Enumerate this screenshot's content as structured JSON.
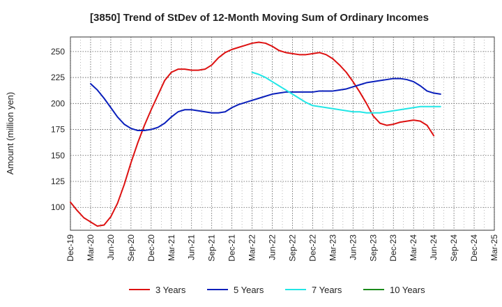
{
  "chart_data": {
    "type": "line",
    "title": "[3850]  Trend of StDev of 12-Month Moving Sum of Ordinary Incomes",
    "xlabel": "",
    "ylabel": "Amount (million yen)",
    "x_tick_labels": [
      "Dec-19",
      "Mar-20",
      "Jun-20",
      "Sep-20",
      "Dec-20",
      "Mar-21",
      "Jun-21",
      "Sep-21",
      "Dec-21",
      "Mar-22",
      "Jun-22",
      "Sep-22",
      "Dec-22",
      "Mar-23",
      "Jun-23",
      "Sep-23",
      "Dec-23",
      "Mar-24",
      "Jun-24",
      "Sep-24",
      "Dec-24",
      "Mar-25"
    ],
    "y_ticks": [
      100,
      125,
      150,
      175,
      200,
      225,
      250
    ],
    "ylim": [
      78,
      264
    ],
    "grid": true,
    "legend_position": "bottom",
    "series": [
      {
        "name": "3 Years",
        "color": "#dd1111",
        "start": "Dec-19",
        "values": [
          105,
          97,
          90,
          86,
          82,
          83,
          91,
          104,
          122,
          143,
          162,
          179,
          194,
          208,
          222,
          230,
          233,
          233,
          232,
          232,
          233,
          237,
          244,
          249,
          252,
          254,
          256,
          258,
          259,
          258,
          255,
          251,
          249,
          248,
          247,
          247,
          248,
          249,
          247,
          243,
          237,
          230,
          221,
          211,
          200,
          188,
          181,
          179,
          180,
          182,
          183,
          184,
          183,
          179,
          169
        ]
      },
      {
        "name": "5 Years",
        "color": "#0a1fbb",
        "start": "Mar-20",
        "values": [
          219,
          213,
          205,
          196,
          187,
          180,
          176,
          174,
          174,
          175,
          177,
          181,
          187,
          192,
          194,
          194,
          193,
          192,
          191,
          191,
          192,
          196,
          199,
          201,
          203,
          205,
          207,
          209,
          210,
          211,
          211,
          211,
          211,
          211,
          212,
          212,
          212,
          213,
          214,
          216,
          218,
          220,
          221,
          222,
          223,
          224,
          224,
          223,
          221,
          217,
          212,
          210,
          209
        ]
      },
      {
        "name": "7 Years",
        "color": "#22e6e6",
        "start": "Mar-22",
        "values": [
          230,
          228,
          225,
          221,
          217,
          213,
          209,
          205,
          201,
          198,
          197,
          196,
          195,
          194,
          193,
          192,
          192,
          191,
          191,
          191,
          192,
          193,
          194,
          195,
          196,
          197,
          197,
          197,
          197
        ]
      },
      {
        "name": "10 Years",
        "color": "#1a8a1a",
        "start": "Dec-24",
        "values": []
      }
    ]
  }
}
